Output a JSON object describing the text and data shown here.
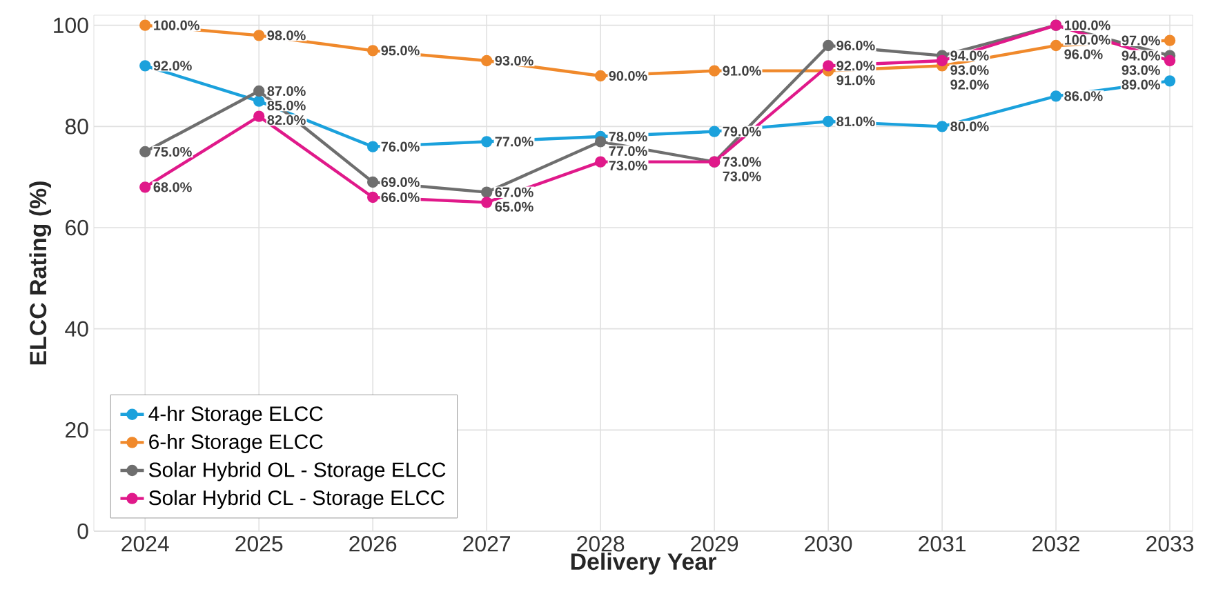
{
  "chart_data": {
    "type": "line",
    "xlabel": "Delivery Year",
    "ylabel": "ELCC Rating (%)",
    "x": [
      2024,
      2025,
      2026,
      2027,
      2028,
      2029,
      2030,
      2031,
      2032,
      2033
    ],
    "xlim": [
      2023.55,
      2033.2
    ],
    "xticks": [
      2024,
      2025,
      2026,
      2027,
      2028,
      2029,
      2030,
      2031,
      2032,
      2033
    ],
    "ylim": [
      0,
      102
    ],
    "yticks": [
      0,
      20,
      40,
      60,
      80,
      100
    ],
    "grid": true,
    "legend": "bottom left",
    "marker": "circle",
    "line_style": "solid",
    "series": [
      {
        "name": "4-hr Storage ELCC",
        "color": "#1ba1dc",
        "values": [
          92,
          85,
          76,
          77,
          78,
          79,
          81,
          80,
          86,
          89
        ],
        "value_labels": [
          "92.0%",
          "85.0%",
          "76.0%",
          "77.0%",
          "78.0%",
          "79.0%",
          "81.0%",
          "80.0%",
          "86.0%",
          "89.0%"
        ]
      },
      {
        "name": "6-hr Storage ELCC",
        "color": "#f0892b",
        "values": [
          100,
          98,
          95,
          93,
          90,
          91,
          91,
          92,
          96,
          97
        ],
        "value_labels": [
          "100.0%",
          "98.0%",
          "95.0%",
          "93.0%",
          "90.0%",
          "91.0%",
          "91.0%",
          "92.0%",
          "96.0%",
          "97.0%"
        ]
      },
      {
        "name": "Solar Hybrid OL - Storage ELCC",
        "color": "#6e6e6e",
        "values": [
          75,
          87,
          69,
          67,
          77,
          73,
          96,
          94,
          100,
          94
        ],
        "value_labels": [
          "75.0%",
          "87.0%",
          "69.0%",
          "67.0%",
          "77.0%",
          "73.0%",
          "96.0%",
          "94.0%",
          "100.0%",
          "94.0%"
        ]
      },
      {
        "name": "Solar Hybrid CL - Storage ELCC",
        "color": "#e0198a",
        "values": [
          68,
          82,
          66,
          65,
          73,
          73,
          92,
          93,
          100,
          93
        ],
        "value_labels": [
          "68.0%",
          "82.0%",
          "66.0%",
          "65.0%",
          "73.0%",
          "73.0%",
          "92.0%",
          "93.0%",
          "100.0%",
          "93.0%"
        ]
      }
    ]
  }
}
